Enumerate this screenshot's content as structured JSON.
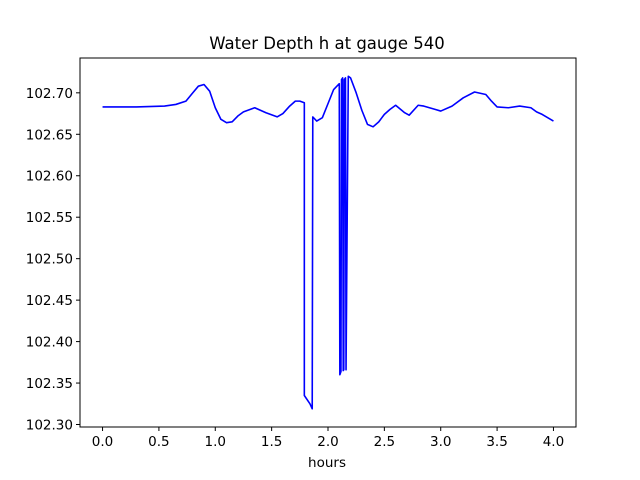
{
  "chart_data": {
    "type": "line",
    "title": "Water Depth h at gauge 540",
    "xlabel": "hours",
    "ylabel": "",
    "xlim": [
      -0.2,
      4.2
    ],
    "ylim": [
      102.297,
      102.742
    ],
    "xticks": [
      "0.0",
      "0.5",
      "1.0",
      "1.5",
      "2.0",
      "2.5",
      "3.0",
      "3.5",
      "4.0"
    ],
    "yticks": [
      "102.30",
      "102.35",
      "102.40",
      "102.45",
      "102.50",
      "102.55",
      "102.60",
      "102.65",
      "102.70"
    ],
    "grid": false,
    "legend": "none",
    "series": [
      {
        "color": "#0000ff",
        "x": [
          0.0,
          0.3,
          0.55,
          0.65,
          0.74,
          0.8,
          0.85,
          0.9,
          0.95,
          1.0,
          1.05,
          1.1,
          1.15,
          1.2,
          1.25,
          1.35,
          1.45,
          1.55,
          1.6,
          1.66,
          1.71,
          1.75,
          1.79,
          1.79,
          1.84,
          1.86,
          1.865,
          1.9,
          1.95,
          2.0,
          2.05,
          2.1,
          2.105,
          2.115,
          2.12,
          2.13,
          2.135,
          2.14,
          2.145,
          2.155,
          2.16,
          2.18,
          2.2,
          2.25,
          2.3,
          2.35,
          2.4,
          2.45,
          2.5,
          2.55,
          2.6,
          2.68,
          2.72,
          2.8,
          2.85,
          2.95,
          3.0,
          3.1,
          3.2,
          3.3,
          3.4,
          3.45,
          3.5,
          3.6,
          3.7,
          3.8,
          3.85,
          3.9,
          4.0
        ],
        "y": [
          102.683,
          102.683,
          102.684,
          102.686,
          102.69,
          102.7,
          102.708,
          102.71,
          102.702,
          102.682,
          102.668,
          102.664,
          102.665,
          102.672,
          102.677,
          102.682,
          102.676,
          102.671,
          102.675,
          102.684,
          102.69,
          102.69,
          102.688,
          102.335,
          102.325,
          102.319,
          102.671,
          102.666,
          102.67,
          102.687,
          102.704,
          102.711,
          102.36,
          102.364,
          102.716,
          102.718,
          102.365,
          102.366,
          102.716,
          102.718,
          102.366,
          102.72,
          102.718,
          102.7,
          102.679,
          102.662,
          102.659,
          102.665,
          102.674,
          102.68,
          102.685,
          102.676,
          102.673,
          102.685,
          102.684,
          102.68,
          102.678,
          102.684,
          102.694,
          102.701,
          102.698,
          102.69,
          102.683,
          102.682,
          102.684,
          102.682,
          102.677,
          102.674,
          102.666
        ]
      }
    ]
  }
}
